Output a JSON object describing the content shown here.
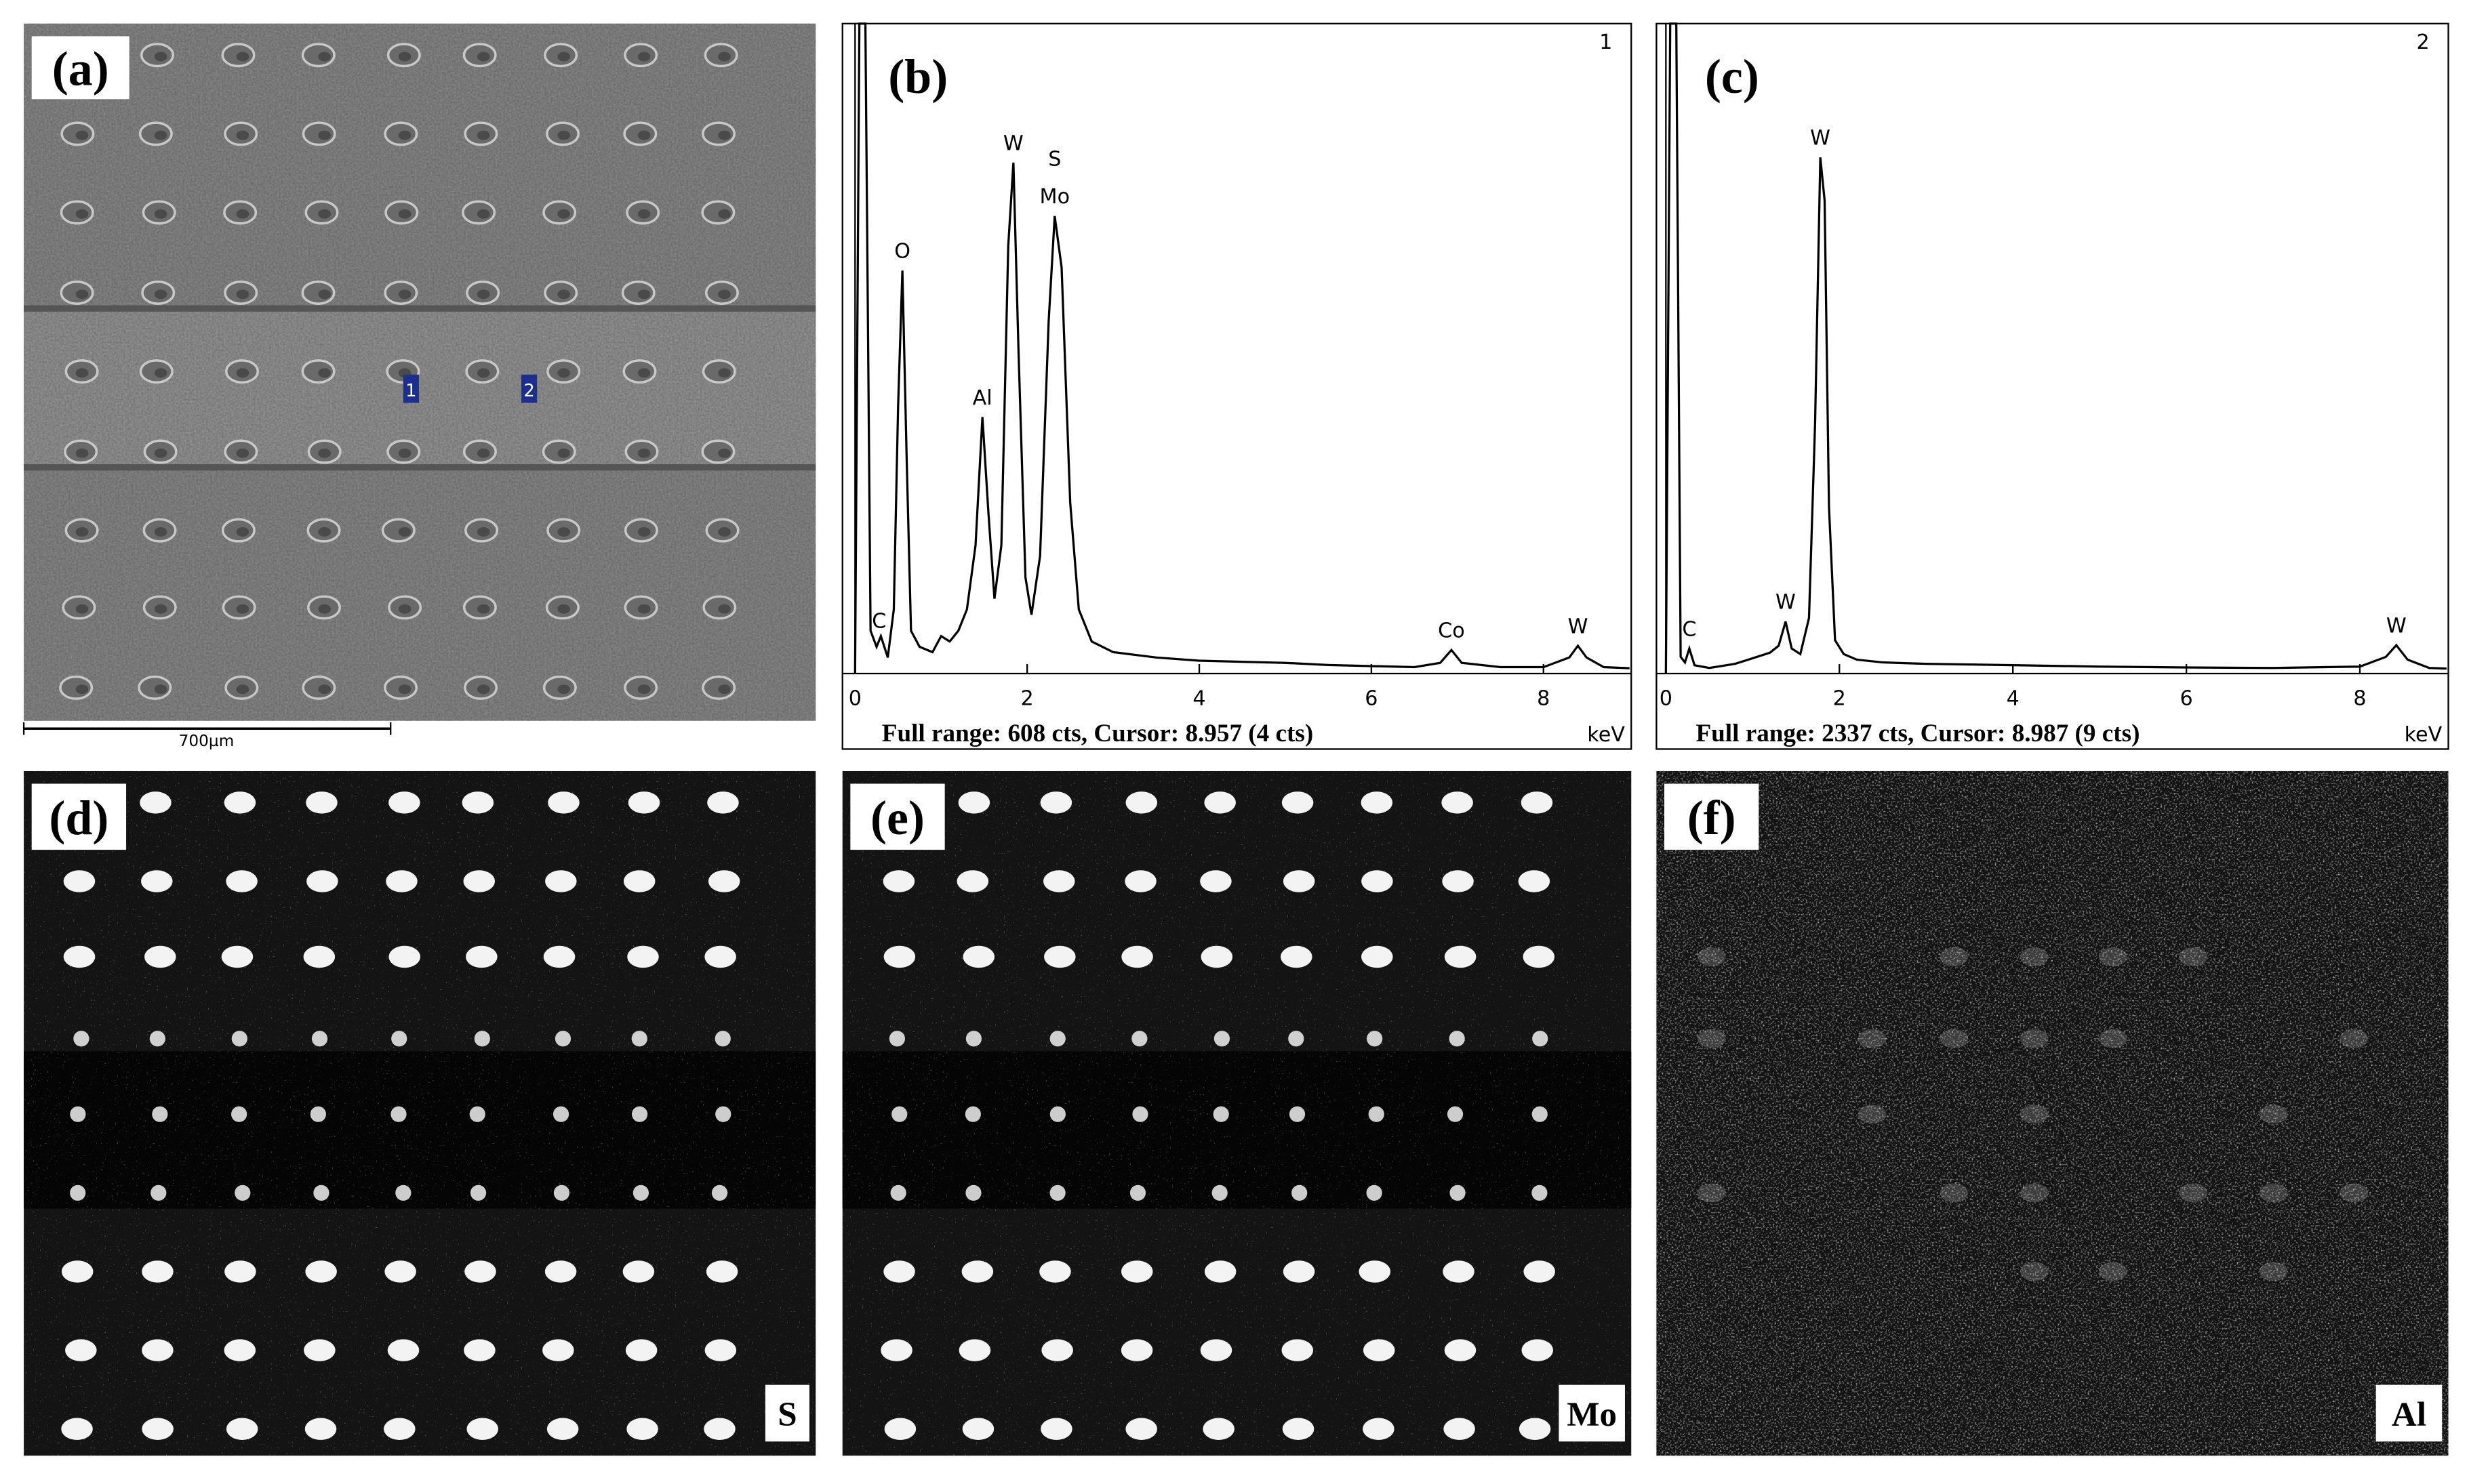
{
  "panels": {
    "a": {
      "label": "(a)",
      "scale_bar": "700µm",
      "markers": [
        "1",
        "2"
      ]
    }
  },
  "chart_data": [
    {
      "type": "line",
      "panel_label": "(b)",
      "spectrum_id": "1",
      "footer": "Full range: 608 cts, Cursor: 8.957 (4 cts)",
      "xlabel": "keV",
      "color": "#000000",
      "x": [
        0,
        0.05,
        0.12,
        0.18,
        0.25,
        0.3,
        0.38,
        0.45,
        0.5,
        0.55,
        0.6,
        0.65,
        0.75,
        0.9,
        1.0,
        1.1,
        1.2,
        1.3,
        1.4,
        1.48,
        1.55,
        1.62,
        1.7,
        1.78,
        1.84,
        1.9,
        1.98,
        2.05,
        2.15,
        2.25,
        2.32,
        2.4,
        2.5,
        2.6,
        2.75,
        3.0,
        3.5,
        4,
        5,
        5.5,
        6,
        6.5,
        6.8,
        6.93,
        7.05,
        7.5,
        8,
        8.3,
        8.4,
        8.5,
        8.7,
        9
      ],
      "values": [
        0,
        608,
        608,
        40,
        25,
        35,
        15,
        60,
        250,
        377,
        200,
        40,
        25,
        20,
        35,
        30,
        40,
        60,
        120,
        240,
        150,
        70,
        120,
        400,
        478,
        300,
        90,
        55,
        110,
        330,
        428,
        380,
        160,
        60,
        30,
        20,
        15,
        12,
        10,
        8,
        7,
        6,
        10,
        22,
        10,
        6,
        6,
        15,
        26,
        15,
        6,
        5
      ],
      "xlim": [
        0,
        9.02
      ],
      "xticks": [
        0,
        2,
        4,
        6,
        8
      ],
      "ylim": [
        0,
        608
      ],
      "peak_labels": [
        {
          "label": "C",
          "x": 0.28
        },
        {
          "label": "O",
          "x": 0.55
        },
        {
          "label": "Al",
          "x": 1.48
        },
        {
          "label": "W",
          "x": 1.84
        },
        {
          "label": "Mo",
          "x": 2.32
        },
        {
          "label": "S",
          "x": 2.32
        },
        {
          "label": "Co",
          "x": 6.93
        },
        {
          "label": "W",
          "x": 8.4
        }
      ]
    },
    {
      "type": "line",
      "panel_label": "(c)",
      "spectrum_id": "2",
      "footer": "Full range: 2337 cts, Cursor: 8.987 (9 cts)",
      "xlabel": "keV",
      "color": "#000000",
      "x": [
        0,
        0.05,
        0.12,
        0.17,
        0.22,
        0.27,
        0.33,
        0.5,
        0.8,
        1.0,
        1.2,
        1.3,
        1.38,
        1.45,
        1.55,
        1.65,
        1.72,
        1.78,
        1.83,
        1.88,
        1.95,
        2.05,
        2.2,
        2.5,
        3,
        4,
        5,
        6,
        7,
        8,
        8.3,
        8.42,
        8.55,
        8.8,
        9
      ],
      "values": [
        0,
        2337,
        2337,
        60,
        40,
        90,
        30,
        20,
        35,
        55,
        75,
        100,
        187,
        90,
        70,
        200,
        900,
        1856,
        1700,
        600,
        120,
        70,
        50,
        40,
        35,
        30,
        25,
        22,
        20,
        25,
        60,
        102,
        50,
        20,
        18
      ],
      "xlim": [
        0,
        9.02
      ],
      "xticks": [
        0,
        2,
        4,
        6,
        8
      ],
      "ylim": [
        0,
        2337
      ],
      "peak_labels": [
        {
          "label": "C",
          "x": 0.27
        },
        {
          "label": "W",
          "x": 1.38
        },
        {
          "label": "W",
          "x": 1.78
        },
        {
          "label": "W",
          "x": 8.42
        }
      ]
    }
  ],
  "maps": [
    {
      "label": "(d)",
      "element": "S"
    },
    {
      "label": "(e)",
      "element": "Mo"
    },
    {
      "label": "(f)",
      "element": "Al"
    }
  ]
}
